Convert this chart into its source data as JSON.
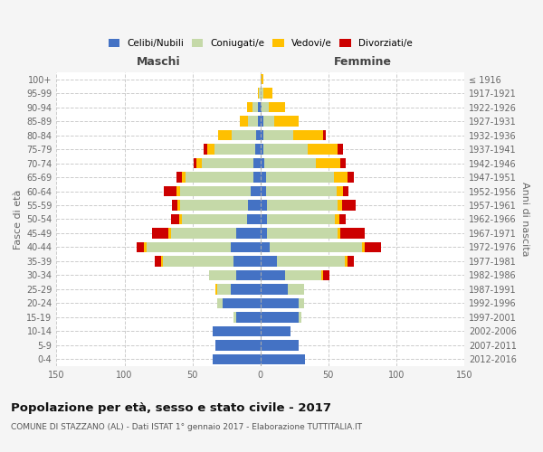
{
  "age_groups": [
    "100+",
    "95-99",
    "90-94",
    "85-89",
    "80-84",
    "75-79",
    "70-74",
    "65-69",
    "60-64",
    "55-59",
    "50-54",
    "45-49",
    "40-44",
    "35-39",
    "30-34",
    "25-29",
    "20-24",
    "15-19",
    "10-14",
    "5-9",
    "0-4"
  ],
  "birth_years": [
    "≤ 1916",
    "1917-1921",
    "1922-1926",
    "1927-1931",
    "1932-1936",
    "1937-1941",
    "1942-1946",
    "1947-1951",
    "1952-1956",
    "1957-1961",
    "1962-1966",
    "1967-1971",
    "1972-1976",
    "1977-1981",
    "1982-1986",
    "1987-1991",
    "1992-1996",
    "1997-2001",
    "2002-2006",
    "2007-2011",
    "2012-2016"
  ],
  "males": {
    "celibi": [
      0,
      0,
      2,
      2,
      3,
      4,
      5,
      5,
      7,
      9,
      10,
      18,
      22,
      20,
      18,
      22,
      28,
      18,
      35,
      33,
      35
    ],
    "coniugati": [
      0,
      1,
      4,
      7,
      18,
      30,
      38,
      50,
      52,
      50,
      48,
      48,
      62,
      52,
      20,
      10,
      4,
      2,
      0,
      0,
      0
    ],
    "vedovi": [
      0,
      1,
      4,
      6,
      10,
      5,
      4,
      3,
      3,
      2,
      2,
      2,
      2,
      1,
      0,
      1,
      0,
      0,
      0,
      0,
      0
    ],
    "divorziati": [
      0,
      0,
      0,
      0,
      0,
      3,
      2,
      4,
      9,
      4,
      6,
      12,
      5,
      5,
      0,
      0,
      0,
      0,
      0,
      0,
      0
    ]
  },
  "females": {
    "nubili": [
      0,
      0,
      1,
      2,
      2,
      2,
      3,
      4,
      4,
      5,
      5,
      5,
      7,
      12,
      18,
      20,
      28,
      28,
      22,
      28,
      33
    ],
    "coniugate": [
      0,
      2,
      5,
      8,
      22,
      33,
      38,
      50,
      52,
      52,
      50,
      52,
      68,
      50,
      27,
      12,
      4,
      2,
      0,
      0,
      0
    ],
    "vedove": [
      2,
      7,
      12,
      18,
      22,
      22,
      18,
      10,
      5,
      3,
      3,
      2,
      2,
      2,
      1,
      0,
      0,
      0,
      0,
      0,
      0
    ],
    "divorziate": [
      0,
      0,
      0,
      0,
      2,
      4,
      4,
      5,
      4,
      10,
      5,
      18,
      12,
      5,
      5,
      0,
      0,
      0,
      0,
      0,
      0
    ]
  },
  "colors": {
    "celibi": "#4472C4",
    "coniugati": "#C5D9A8",
    "vedovi": "#FFC000",
    "divorziati": "#CC0000"
  },
  "xlim": 150,
  "title": "Popolazione per età, sesso e stato civile - 2017",
  "subtitle": "COMUNE DI STAZZANO (AL) - Dati ISTAT 1° gennaio 2017 - Elaborazione TUTTITALIA.IT",
  "ylabel_left": "Fasce di età",
  "ylabel_right": "Anni di nascita",
  "xlabel_left": "Maschi",
  "xlabel_right": "Femmine",
  "bg_color": "#f5f5f5",
  "plot_bg": "#ffffff",
  "legend_labels": [
    "Celibi/Nubili",
    "Coniugati/e",
    "Vedovi/e",
    "Divorziati/e"
  ]
}
